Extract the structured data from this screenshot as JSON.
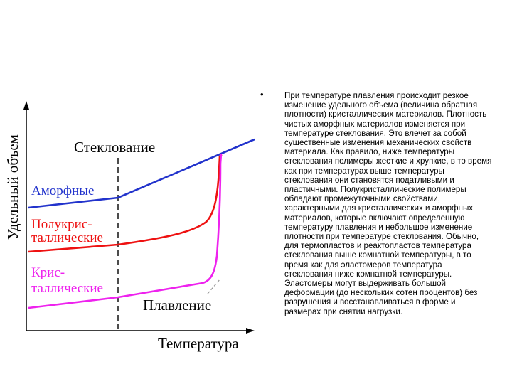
{
  "chart_data": {
    "type": "line",
    "ylabel": "Удельный объем",
    "xlabel": "Температура",
    "annotations": {
      "glass_transition": "Стеклование",
      "melting": "Плавление"
    },
    "series": [
      {
        "name": "Аморфные",
        "color": "#2233cc"
      },
      {
        "name": "Полукристаллические",
        "label_lines": [
          "Полукрис-",
          "таллические"
        ],
        "color": "#ee1111"
      },
      {
        "name": "Кристаллические",
        "label_lines": [
          "Крис-",
          "таллические"
        ],
        "color": "#ee22ee"
      }
    ]
  },
  "text": {
    "bullet": "•",
    "paragraph": "При температуре плавления происходит резкое изменение удельного объема (величина обратная плотности) кристаллических материалов. Плотность чистых аморфных материалов изменяется при температуре стеклования. Это влечет за собой существенные изменения механических свойств материала. Как правило, ниже температуры стеклования полимеры жесткие и хрупкие, в то время как при температурах выше температуры стеклования они становятся податливыми и пластичными. Полукристаллические полимеры обладают промежуточными свойствами, характерными для кристаллических и аморфных материалов, которые включают определенную температуру плавления и небольшое изменение плотности при температуре стеклования. Обычно, для термопластов и реактопластов температура стеклования выше комнатной температуры, в то время как для эластомеров температура стеклования ниже комнатной температуры. Эластомеры могут выдерживать большой деформации (до нескольких сотен процентов) без разрушения и восстанавливаться в форме и размерах при снятии нагрузки."
  }
}
